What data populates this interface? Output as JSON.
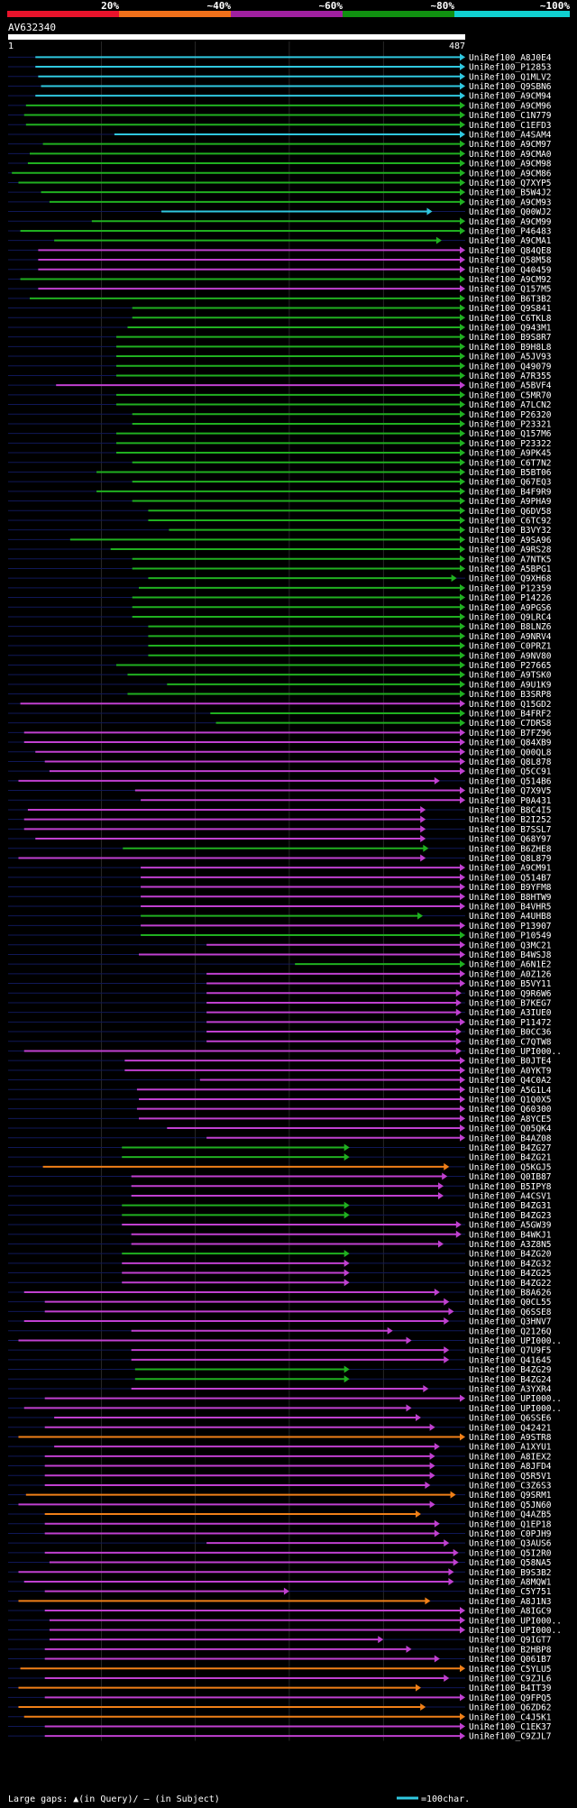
{
  "header": {
    "scale_labels": [
      "20%",
      "~40%",
      "~60%",
      "~80%",
      "~100%"
    ],
    "scale_colors": [
      "#e8132b",
      "#f0701a",
      "#a020a0",
      "#109010",
      "#10d0d0"
    ],
    "query_id": "AV632340",
    "ruler_start": "1",
    "ruler_end": "487"
  },
  "legend": {
    "gaps_label": "Large gaps: ▲(in Query)/ – (in Subject)",
    "scale_label": "=100char."
  },
  "colors": {
    "cyan": "#30c8e0",
    "green": "#20b020",
    "purple": "#c040d0",
    "orange": "#f08018",
    "label": "#ffffff",
    "background": "#000000",
    "track": "#101858",
    "guide": "#404040"
  },
  "chart_data": {
    "type": "alignment",
    "title": "AV632340",
    "query_length": 487,
    "x_unit": "query position (aa)",
    "rows": [
      {
        "id": "UniRef100_A8J0E4",
        "c": "cyan",
        "s": 30,
        "e": 487
      },
      {
        "id": "UniRef100_P12853",
        "c": "cyan",
        "s": 30,
        "e": 487
      },
      {
        "id": "UniRef100_Q1MLV2",
        "c": "cyan",
        "s": 33,
        "e": 487
      },
      {
        "id": "UniRef100_Q9SBN6",
        "c": "cyan",
        "s": 36,
        "e": 487
      },
      {
        "id": "UniRef100_A9CM94",
        "c": "cyan",
        "s": 30,
        "e": 487
      },
      {
        "id": "UniRef100_A9CM96",
        "c": "green",
        "s": 20,
        "e": 487
      },
      {
        "id": "UniRef100_C1N779",
        "c": "green",
        "s": 18,
        "e": 487
      },
      {
        "id": "UniRef100_C1EFD3",
        "c": "green",
        "s": 20,
        "e": 487
      },
      {
        "id": "UniRef100_A4SAM4",
        "c": "cyan",
        "s": 114,
        "e": 487
      },
      {
        "id": "UniRef100_A9CM97",
        "c": "green",
        "s": 38,
        "e": 487
      },
      {
        "id": "UniRef100_A9CMA0",
        "c": "green",
        "s": 24,
        "e": 487
      },
      {
        "id": "UniRef100_A9CM98",
        "c": "green",
        "s": 22,
        "e": 487
      },
      {
        "id": "UniRef100_A9CM86",
        "c": "green",
        "s": 5,
        "e": 487
      },
      {
        "id": "UniRef100_Q7XYP5",
        "c": "green",
        "s": 12,
        "e": 487
      },
      {
        "id": "UniRef100_B5W4J2",
        "c": "green",
        "s": 36,
        "e": 487
      },
      {
        "id": "UniRef100_A9CM93",
        "c": "green",
        "s": 45,
        "e": 487
      },
      {
        "id": "UniRef100_Q00WJ2",
        "c": "cyan",
        "s": 164,
        "e": 452
      },
      {
        "id": "UniRef100_A9CM99",
        "c": "green",
        "s": 90,
        "e": 487
      },
      {
        "id": "UniRef100_P46483",
        "c": "green",
        "s": 14,
        "e": 487
      },
      {
        "id": "UniRef100_A9CMA1",
        "c": "green",
        "s": 50,
        "e": 462
      },
      {
        "id": "UniRef100_Q84QE8",
        "c": "purple",
        "s": 33,
        "e": 487
      },
      {
        "id": "UniRef100_Q58M58",
        "c": "purple",
        "s": 33,
        "e": 487
      },
      {
        "id": "UniRef100_Q40459",
        "c": "purple",
        "s": 33,
        "e": 487
      },
      {
        "id": "UniRef100_A9CM92",
        "c": "green",
        "s": 14,
        "e": 487
      },
      {
        "id": "UniRef100_Q157M5",
        "c": "purple",
        "s": 33,
        "e": 487
      },
      {
        "id": "UniRef100_B6T3B2",
        "c": "green",
        "s": 24,
        "e": 487
      },
      {
        "id": "UniRef100_Q9S841",
        "c": "green",
        "s": 133,
        "e": 487
      },
      {
        "id": "UniRef100_C6TKL8",
        "c": "green",
        "s": 133,
        "e": 487
      },
      {
        "id": "UniRef100_Q943M1",
        "c": "green",
        "s": 128,
        "e": 487
      },
      {
        "id": "UniRef100_B9S8R7",
        "c": "green",
        "s": 116,
        "e": 487
      },
      {
        "id": "UniRef100_B9H8L8",
        "c": "green",
        "s": 116,
        "e": 487
      },
      {
        "id": "UniRef100_A5JV93",
        "c": "green",
        "s": 116,
        "e": 487
      },
      {
        "id": "UniRef100_Q49079",
        "c": "green",
        "s": 116,
        "e": 487
      },
      {
        "id": "UniRef100_A7R355",
        "c": "green",
        "s": 116,
        "e": 487
      },
      {
        "id": "UniRef100_A5BVF4",
        "c": "purple",
        "s": 52,
        "e": 487
      },
      {
        "id": "UniRef100_C5MR70",
        "c": "green",
        "s": 116,
        "e": 487
      },
      {
        "id": "UniRef100_A7LCN2",
        "c": "green",
        "s": 116,
        "e": 487
      },
      {
        "id": "UniRef100_P26320",
        "c": "green",
        "s": 133,
        "e": 487
      },
      {
        "id": "UniRef100_P23321",
        "c": "green",
        "s": 133,
        "e": 487
      },
      {
        "id": "UniRef100_Q157M6",
        "c": "green",
        "s": 116,
        "e": 487
      },
      {
        "id": "UniRef100_P23322",
        "c": "green",
        "s": 116,
        "e": 487
      },
      {
        "id": "UniRef100_A9PK45",
        "c": "green",
        "s": 116,
        "e": 487
      },
      {
        "id": "UniRef100_C6T7N2",
        "c": "green",
        "s": 133,
        "e": 487
      },
      {
        "id": "UniRef100_B5BT06",
        "c": "green",
        "s": 95,
        "e": 487
      },
      {
        "id": "UniRef100_Q67EQ3",
        "c": "green",
        "s": 133,
        "e": 487
      },
      {
        "id": "UniRef100_B4F9R9",
        "c": "green",
        "s": 95,
        "e": 487
      },
      {
        "id": "UniRef100_A9PHA9",
        "c": "green",
        "s": 133,
        "e": 487
      },
      {
        "id": "UniRef100_Q6DV58",
        "c": "green",
        "s": 150,
        "e": 487
      },
      {
        "id": "UniRef100_C6TC92",
        "c": "green",
        "s": 150,
        "e": 487
      },
      {
        "id": "UniRef100_B3VY32",
        "c": "green",
        "s": 172,
        "e": 487
      },
      {
        "id": "UniRef100_A9SA96",
        "c": "green",
        "s": 67,
        "e": 487
      },
      {
        "id": "UniRef100_A9RS28",
        "c": "green",
        "s": 110,
        "e": 487
      },
      {
        "id": "UniRef100_A7NTK5",
        "c": "green",
        "s": 133,
        "e": 487
      },
      {
        "id": "UniRef100_A5BPG1",
        "c": "green",
        "s": 133,
        "e": 487
      },
      {
        "id": "UniRef100_Q9XH68",
        "c": "green",
        "s": 150,
        "e": 478
      },
      {
        "id": "UniRef100_P12359",
        "c": "green",
        "s": 140,
        "e": 487
      },
      {
        "id": "UniRef100_P14226",
        "c": "green",
        "s": 133,
        "e": 487
      },
      {
        "id": "UniRef100_A9PGS6",
        "c": "green",
        "s": 133,
        "e": 487
      },
      {
        "id": "UniRef100_Q9LRC4",
        "c": "green",
        "s": 133,
        "e": 487
      },
      {
        "id": "UniRef100_B8LNZ6",
        "c": "green",
        "s": 150,
        "e": 487
      },
      {
        "id": "UniRef100_A9NRV4",
        "c": "green",
        "s": 150,
        "e": 487
      },
      {
        "id": "UniRef100_C0PRZ1",
        "c": "green",
        "s": 150,
        "e": 487
      },
      {
        "id": "UniRef100_A9NV80",
        "c": "green",
        "s": 150,
        "e": 487
      },
      {
        "id": "UniRef100_P27665",
        "c": "green",
        "s": 116,
        "e": 487
      },
      {
        "id": "UniRef100_A9TSK0",
        "c": "green",
        "s": 128,
        "e": 487
      },
      {
        "id": "UniRef100_A9U1K9",
        "c": "green",
        "s": 170,
        "e": 487
      },
      {
        "id": "UniRef100_B3SRP8",
        "c": "green",
        "s": 128,
        "e": 487
      },
      {
        "id": "UniRef100_Q15GD2",
        "c": "purple",
        "s": 14,
        "e": 487
      },
      {
        "id": "UniRef100_B4FRF2",
        "c": "green",
        "s": 216,
        "e": 487
      },
      {
        "id": "UniRef100_C7DRS8",
        "c": "green",
        "s": 222,
        "e": 487
      },
      {
        "id": "UniRef100_B7FZ96",
        "c": "purple",
        "s": 18,
        "e": 487
      },
      {
        "id": "UniRef100_Q84XB9",
        "c": "purple",
        "s": 18,
        "e": 487
      },
      {
        "id": "UniRef100_Q00QL8",
        "c": "purple",
        "s": 30,
        "e": 487
      },
      {
        "id": "UniRef100_Q8L878",
        "c": "purple",
        "s": 40,
        "e": 487
      },
      {
        "id": "UniRef100_Q5CC91",
        "c": "purple",
        "s": 45,
        "e": 487
      },
      {
        "id": "UniRef100_Q514B6",
        "c": "purple",
        "s": 12,
        "e": 460
      },
      {
        "id": "UniRef100_Q7X9V5",
        "c": "purple",
        "s": 136,
        "e": 487
      },
      {
        "id": "UniRef100_P0A431",
        "c": "purple",
        "s": 142,
        "e": 487
      },
      {
        "id": "UniRef100_B8C4I5",
        "c": "purple",
        "s": 22,
        "e": 445
      },
      {
        "id": "UniRef100_B2I252",
        "c": "purple",
        "s": 18,
        "e": 445
      },
      {
        "id": "UniRef100_B7SSL7",
        "c": "purple",
        "s": 18,
        "e": 445
      },
      {
        "id": "UniRef100_Q68Y97",
        "c": "purple",
        "s": 30,
        "e": 445
      },
      {
        "id": "UniRef100_B6ZHE8",
        "c": "green",
        "s": 123,
        "e": 448
      },
      {
        "id": "UniRef100_Q8L879",
        "c": "purple",
        "s": 12,
        "e": 445
      },
      {
        "id": "UniRef100_A9CM91",
        "c": "purple",
        "s": 142,
        "e": 487
      },
      {
        "id": "UniRef100_Q514B7",
        "c": "purple",
        "s": 142,
        "e": 487
      },
      {
        "id": "UniRef100_B9YFM8",
        "c": "purple",
        "s": 142,
        "e": 487
      },
      {
        "id": "UniRef100_B8HTW9",
        "c": "purple",
        "s": 142,
        "e": 487
      },
      {
        "id": "UniRef100_B4VHR5",
        "c": "purple",
        "s": 142,
        "e": 487
      },
      {
        "id": "UniRef100_A4UHB8",
        "c": "green",
        "s": 142,
        "e": 442
      },
      {
        "id": "UniRef100_P13907",
        "c": "purple",
        "s": 142,
        "e": 487
      },
      {
        "id": "UniRef100_P10549",
        "c": "green",
        "s": 142,
        "e": 487
      },
      {
        "id": "UniRef100_Q3MC21",
        "c": "purple",
        "s": 212,
        "e": 487
      },
      {
        "id": "UniRef100_B4WSJ8",
        "c": "purple",
        "s": 140,
        "e": 487
      },
      {
        "id": "UniRef100_A6N1E2",
        "c": "green",
        "s": 306,
        "e": 487
      },
      {
        "id": "UniRef100_A0Z126",
        "c": "purple",
        "s": 212,
        "e": 487
      },
      {
        "id": "UniRef100_B5VY11",
        "c": "purple",
        "s": 212,
        "e": 487
      },
      {
        "id": "UniRef100_Q9R6W6",
        "c": "purple",
        "s": 212,
        "e": 483
      },
      {
        "id": "UniRef100_B7KEG7",
        "c": "purple",
        "s": 212,
        "e": 483
      },
      {
        "id": "UniRef100_A3IUE0",
        "c": "purple",
        "s": 212,
        "e": 483
      },
      {
        "id": "UniRef100_P11472",
        "c": "purple",
        "s": 212,
        "e": 487
      },
      {
        "id": "UniRef100_B0CC36",
        "c": "purple",
        "s": 212,
        "e": 483
      },
      {
        "id": "UniRef100_C7QTW8",
        "c": "purple",
        "s": 212,
        "e": 483
      },
      {
        "id": "UniRef100_UPI000..",
        "c": "purple",
        "s": 18,
        "e": 483
      },
      {
        "id": "UniRef100_B0JTE4",
        "c": "purple",
        "s": 125,
        "e": 487
      },
      {
        "id": "UniRef100_A0YKT9",
        "c": "purple",
        "s": 125,
        "e": 487
      },
      {
        "id": "UniRef100_Q4C0A2",
        "c": "purple",
        "s": 205,
        "e": 487
      },
      {
        "id": "UniRef100_A5G1L4",
        "c": "purple",
        "s": 138,
        "e": 487
      },
      {
        "id": "UniRef100_Q1Q0X5",
        "c": "purple",
        "s": 140,
        "e": 487
      },
      {
        "id": "UniRef100_Q60300",
        "c": "purple",
        "s": 138,
        "e": 487
      },
      {
        "id": "UniRef100_A8YCE5",
        "c": "purple",
        "s": 140,
        "e": 487
      },
      {
        "id": "UniRef100_Q05QK4",
        "c": "purple",
        "s": 170,
        "e": 487
      },
      {
        "id": "UniRef100_B4AZ08",
        "c": "purple",
        "s": 212,
        "e": 487
      },
      {
        "id": "UniRef100_B4ZG27",
        "c": "green",
        "s": 122,
        "e": 364
      },
      {
        "id": "UniRef100_B4ZG21",
        "c": "green",
        "s": 122,
        "e": 364
      },
      {
        "id": "UniRef100_Q5KGJ5",
        "c": "orange",
        "s": 38,
        "e": 470
      },
      {
        "id": "UniRef100_Q0IB87",
        "c": "purple",
        "s": 132,
        "e": 468
      },
      {
        "id": "UniRef100_B5IPY8",
        "c": "purple",
        "s": 132,
        "e": 464
      },
      {
        "id": "UniRef100_A4CSV1",
        "c": "purple",
        "s": 132,
        "e": 464
      },
      {
        "id": "UniRef100_B4ZG31",
        "c": "green",
        "s": 122,
        "e": 364
      },
      {
        "id": "UniRef100_B4ZG23",
        "c": "green",
        "s": 122,
        "e": 364
      },
      {
        "id": "UniRef100_A5GW39",
        "c": "purple",
        "s": 122,
        "e": 483
      },
      {
        "id": "UniRef100_B4WKJ1",
        "c": "purple",
        "s": 132,
        "e": 483
      },
      {
        "id": "UniRef100_A3Z8N5",
        "c": "purple",
        "s": 132,
        "e": 464
      },
      {
        "id": "UniRef100_B4ZG20",
        "c": "green",
        "s": 122,
        "e": 364
      },
      {
        "id": "UniRef100_B4ZG32",
        "c": "purple",
        "s": 122,
        "e": 364
      },
      {
        "id": "UniRef100_B4ZG25",
        "c": "purple",
        "s": 122,
        "e": 364
      },
      {
        "id": "UniRef100_B4ZG22",
        "c": "purple",
        "s": 122,
        "e": 364
      },
      {
        "id": "UniRef100_B8A626",
        "c": "purple",
        "s": 18,
        "e": 460
      },
      {
        "id": "UniRef100_Q0CL55",
        "c": "purple",
        "s": 40,
        "e": 470
      },
      {
        "id": "UniRef100_Q6SSE8",
        "c": "purple",
        "s": 40,
        "e": 475
      },
      {
        "id": "UniRef100_Q3HNV7",
        "c": "purple",
        "s": 18,
        "e": 470
      },
      {
        "id": "UniRef100_Q2126Q",
        "c": "purple",
        "s": 132,
        "e": 410
      },
      {
        "id": "UniRef100_UPI000..",
        "c": "purple",
        "s": 12,
        "e": 430
      },
      {
        "id": "UniRef100_Q7U9F5",
        "c": "purple",
        "s": 132,
        "e": 470
      },
      {
        "id": "UniRef100_Q41645",
        "c": "purple",
        "s": 132,
        "e": 470
      },
      {
        "id": "UniRef100_B4ZG29",
        "c": "green",
        "s": 136,
        "e": 364
      },
      {
        "id": "UniRef100_B4ZG24",
        "c": "green",
        "s": 136,
        "e": 364
      },
      {
        "id": "UniRef100_A3YXR4",
        "c": "purple",
        "s": 132,
        "e": 448
      },
      {
        "id": "UniRef100_UPI000..",
        "c": "purple",
        "s": 40,
        "e": 487
      },
      {
        "id": "UniRef100_UPI000..",
        "c": "purple",
        "s": 18,
        "e": 430
      },
      {
        "id": "UniRef100_Q6SSE6",
        "c": "purple",
        "s": 50,
        "e": 440
      },
      {
        "id": "UniRef100_Q42421",
        "c": "purple",
        "s": 40,
        "e": 455
      },
      {
        "id": "UniRef100_A9STR8",
        "c": "orange",
        "s": 12,
        "e": 487
      },
      {
        "id": "UniRef100_A1XYU1",
        "c": "purple",
        "s": 50,
        "e": 460
      },
      {
        "id": "UniRef100_A8IEX2",
        "c": "purple",
        "s": 40,
        "e": 455
      },
      {
        "id": "UniRef100_A8JFD4",
        "c": "purple",
        "s": 40,
        "e": 455
      },
      {
        "id": "UniRef100_Q5R5V1",
        "c": "purple",
        "s": 40,
        "e": 455
      },
      {
        "id": "UniRef100_C3Z6S3",
        "c": "purple",
        "s": 40,
        "e": 450
      },
      {
        "id": "UniRef100_Q9SRM1",
        "c": "orange",
        "s": 20,
        "e": 477
      },
      {
        "id": "UniRef100_Q5JN60",
        "c": "purple",
        "s": 12,
        "e": 455
      },
      {
        "id": "UniRef100_Q4AZB5",
        "c": "orange",
        "s": 40,
        "e": 440
      },
      {
        "id": "UniRef100_Q1EP18",
        "c": "purple",
        "s": 40,
        "e": 460
      },
      {
        "id": "UniRef100_C0PJH9",
        "c": "purple",
        "s": 40,
        "e": 460
      },
      {
        "id": "UniRef100_Q3AUS6",
        "c": "purple",
        "s": 212,
        "e": 470
      },
      {
        "id": "UniRef100_Q5I2R0",
        "c": "purple",
        "s": 40,
        "e": 480
      },
      {
        "id": "UniRef100_Q58NA5",
        "c": "purple",
        "s": 45,
        "e": 480
      },
      {
        "id": "UniRef100_B9S3B2",
        "c": "purple",
        "s": 12,
        "e": 475
      },
      {
        "id": "UniRef100_A8MQW1",
        "c": "purple",
        "s": 18,
        "e": 475
      },
      {
        "id": "UniRef100_C5Y751",
        "c": "purple",
        "s": 40,
        "e": 300
      },
      {
        "id": "UniRef100_A8J1N3",
        "c": "orange",
        "s": 12,
        "e": 450
      },
      {
        "id": "UniRef100_A8IGC9",
        "c": "purple",
        "s": 40,
        "e": 487
      },
      {
        "id": "UniRef100_UPI000..",
        "c": "purple",
        "s": 45,
        "e": 487
      },
      {
        "id": "UniRef100_UPI000..",
        "c": "purple",
        "s": 45,
        "e": 487
      },
      {
        "id": "UniRef100_Q9IGT7",
        "c": "purple",
        "s": 45,
        "e": 400
      },
      {
        "id": "UniRef100_B2HBP8",
        "c": "purple",
        "s": 40,
        "e": 430
      },
      {
        "id": "UniRef100_Q061B7",
        "c": "purple",
        "s": 40,
        "e": 460
      },
      {
        "id": "UniRef100_C5YLU5",
        "c": "orange",
        "s": 14,
        "e": 487
      },
      {
        "id": "UniRef100_C9ZJL6",
        "c": "purple",
        "s": 40,
        "e": 470
      },
      {
        "id": "UniRef100_B4IT39",
        "c": "orange",
        "s": 12,
        "e": 440
      },
      {
        "id": "UniRef100_Q9FPQ5",
        "c": "purple",
        "s": 40,
        "e": 487
      },
      {
        "id": "UniRef100_Q6ZD62",
        "c": "orange",
        "s": 12,
        "e": 445
      },
      {
        "id": "UniRef100_C4J5K1",
        "c": "orange",
        "s": 18,
        "e": 487
      },
      {
        "id": "UniRef100_C1EK37",
        "c": "purple",
        "s": 40,
        "e": 487
      },
      {
        "id": "UniRef100_C9ZJL7",
        "c": "purple",
        "s": 40,
        "e": 487
      }
    ]
  }
}
